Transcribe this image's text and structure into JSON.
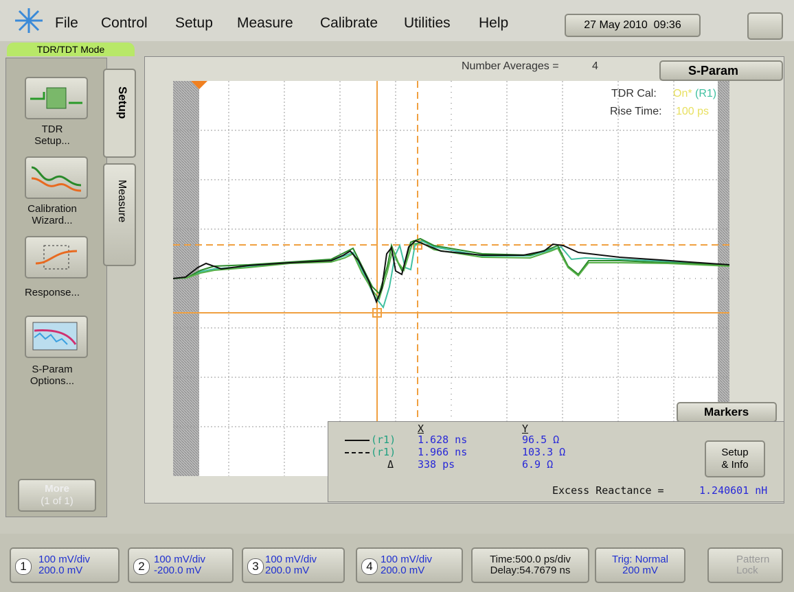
{
  "menu": [
    "File",
    "Control",
    "Setup",
    "Measure",
    "Calibrate",
    "Utilities",
    "Help"
  ],
  "datetime": "27 May 2010  09:36",
  "mode": "TDR/TDT Mode",
  "sidebar": {
    "buttons": [
      [
        "TDR",
        "Setup..."
      ],
      [
        "Calibration",
        "Wizard..."
      ],
      [
        "Response..."
      ],
      [
        "S-Param",
        "Options..."
      ]
    ],
    "more": "More",
    "more_page": "(1 of 1)"
  },
  "tabs": [
    "Setup",
    "Measure"
  ],
  "display": {
    "averages_label": "Number Averages =",
    "averages": 4,
    "sparam": "S-Param",
    "tdr_cal_label": "TDR Cal:",
    "tdr_cal": "On*",
    "tdr_cal_ref": "(R1)",
    "rise_time_label": "Rise Time:",
    "rise_time": "100 ps"
  },
  "markers": {
    "title": "Markers",
    "x_header": "X",
    "y_header": "Y",
    "rows": [
      {
        "ref": "(r1)",
        "x": "1.628 ns",
        "y": "96.5 Ω"
      },
      {
        "ref": "(r1)",
        "x": "1.966 ns",
        "y": "103.3 Ω"
      },
      {
        "ref": "Δ",
        "x": "338 ps",
        "y": "6.9 Ω"
      }
    ],
    "excess_label": "Excess Reactance =",
    "excess": "1.240601 nH",
    "button": [
      "Setup",
      "& Info"
    ]
  },
  "channels": [
    {
      "num": "1",
      "scale": "100 mV/div",
      "offset": "200.0 mV"
    },
    {
      "num": "2",
      "scale": "100 mV/div",
      "offset": "-200.0 mV"
    },
    {
      "num": "3",
      "scale": "100 mV/div",
      "offset": "200.0 mV"
    },
    {
      "num": "4",
      "scale": "100 mV/div",
      "offset": "200.0 mV"
    }
  ],
  "timebase": [
    "Time:500.0 ps/div",
    "Delay:54.7679 ns"
  ],
  "trigger": [
    "Trig: Normal",
    "200 mV"
  ],
  "pattern_lock": [
    "Pattern",
    "Lock"
  ]
}
